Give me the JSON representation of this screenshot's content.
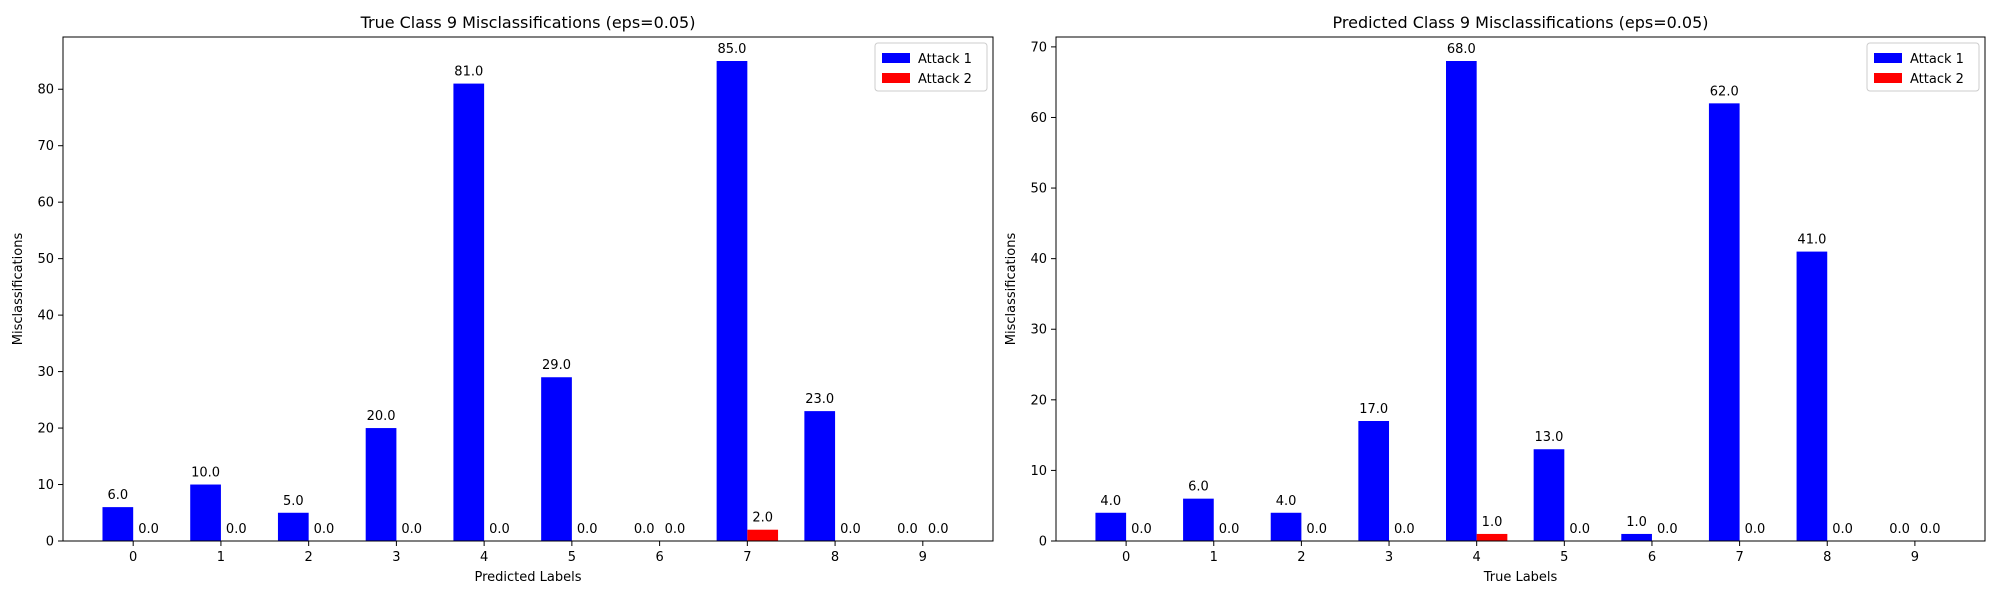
{
  "colors": {
    "attack1": "#0000ff",
    "attack2": "#ff0000"
  },
  "chart_data": [
    {
      "type": "bar",
      "title": "True Class 9 Misclassifications (eps=0.05)",
      "xlabel": "Predicted Labels",
      "ylabel": "Misclassifications",
      "categories": [
        "0",
        "1",
        "2",
        "3",
        "4",
        "5",
        "6",
        "7",
        "8",
        "9"
      ],
      "series": [
        {
          "name": "Attack 1",
          "values": [
            6,
            10,
            5,
            20,
            81,
            29,
            0,
            85,
            23,
            0
          ],
          "labels": [
            "6.0",
            "10.0",
            "5.0",
            "20.0",
            "81.0",
            "29.0",
            "0.0",
            "85.0",
            "23.0",
            "0.0"
          ]
        },
        {
          "name": "Attack 2",
          "values": [
            0,
            0,
            0,
            0,
            0,
            0,
            0,
            2,
            0,
            0
          ],
          "labels": [
            "0.0",
            "0.0",
            "0.0",
            "0.0",
            "0.0",
            "0.0",
            "0.0",
            "2.0",
            "0.0",
            "0.0"
          ]
        }
      ],
      "ylim": [
        0,
        89.25
      ],
      "yticks": [
        0,
        10,
        20,
        30,
        40,
        50,
        60,
        70,
        80
      ],
      "ytick_labels": [
        "0",
        "10",
        "20",
        "30",
        "40",
        "50",
        "60",
        "70",
        "80"
      ],
      "legend": "upper-right",
      "grid": false
    },
    {
      "type": "bar",
      "title": "Predicted Class 9 Misclassifications (eps=0.05)",
      "xlabel": "True Labels",
      "ylabel": "Misclassifications",
      "categories": [
        "0",
        "1",
        "2",
        "3",
        "4",
        "5",
        "6",
        "7",
        "8",
        "9"
      ],
      "series": [
        {
          "name": "Attack 1",
          "values": [
            4,
            6,
            4,
            17,
            68,
            13,
            1,
            62,
            41,
            0
          ],
          "labels": [
            "4.0",
            "6.0",
            "4.0",
            "17.0",
            "68.0",
            "13.0",
            "1.0",
            "62.0",
            "41.0",
            "0.0"
          ]
        },
        {
          "name": "Attack 2",
          "values": [
            0,
            0,
            0,
            0,
            1,
            0,
            0,
            0,
            0,
            0
          ],
          "labels": [
            "0.0",
            "0.0",
            "0.0",
            "0.0",
            "1.0",
            "0.0",
            "0.0",
            "0.0",
            "0.0",
            "0.0"
          ]
        }
      ],
      "ylim": [
        0,
        71.4
      ],
      "yticks": [
        0,
        10,
        20,
        30,
        40,
        50,
        60,
        70
      ],
      "ytick_labels": [
        "0",
        "10",
        "20",
        "30",
        "40",
        "50",
        "60",
        "70"
      ],
      "legend": "upper-right",
      "grid": false
    }
  ]
}
